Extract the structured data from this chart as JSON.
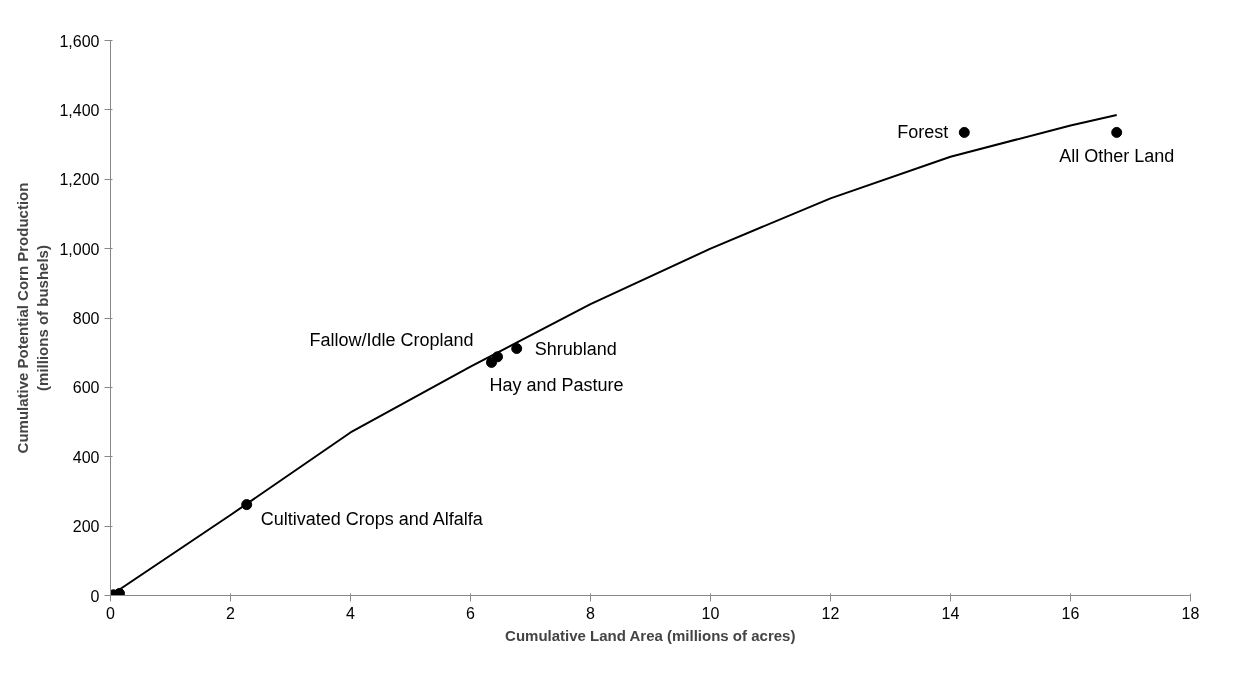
{
  "chart_data": {
    "type": "scatter",
    "xlabel": "Cumulative Land Area (millions of acres)",
    "ylabel": "Cumulative Potential Corn Production\n(millions of bushels)",
    "xlim": [
      0,
      18
    ],
    "xticks": [
      0,
      2,
      4,
      6,
      8,
      10,
      12,
      14,
      16,
      18
    ],
    "ylim": [
      0,
      1600
    ],
    "yticks": [
      {
        "value": 0,
        "label": "0"
      },
      {
        "value": 200,
        "label": "200"
      },
      {
        "value": 400,
        "label": "400"
      },
      {
        "value": 600,
        "label": "600"
      },
      {
        "value": 800,
        "label": "800"
      },
      {
        "value": 1000,
        "label": "1,000"
      },
      {
        "value": 1200,
        "label": "1,200"
      },
      {
        "value": 1400,
        "label": "1,400"
      },
      {
        "value": 1600,
        "label": "1,600"
      }
    ],
    "grid": false,
    "series": [
      {
        "marker": "circle",
        "color": "#000000",
        "x": [
          0.05,
          0.15,
          2.27,
          6.35,
          6.45,
          6.77,
          14.23,
          16.77
        ],
        "values": [
          2,
          6,
          262,
          672,
          688,
          712,
          1335,
          1335
        ]
      },
      {
        "type": "line",
        "marker": "none",
        "color": "#000000",
        "line_style": "solid",
        "x": [
          0,
          2,
          4,
          6,
          8,
          10,
          12,
          14,
          16,
          16.77
        ],
        "values": [
          0,
          232,
          470,
          660,
          840,
          1000,
          1145,
          1265,
          1355,
          1385
        ]
      }
    ],
    "annotations": [
      {
        "text": "Cultivated Crops and Alfalfa",
        "x": 2.27,
        "y": 262
      },
      {
        "text": "Fallow/Idle Cropland",
        "x": 6.35,
        "y": 672
      },
      {
        "text": "Hay and Pasture",
        "x": 6.45,
        "y": 688
      },
      {
        "text": "Shrubland",
        "x": 6.77,
        "y": 712
      },
      {
        "text": "Forest",
        "x": 14.23,
        "y": 1335
      },
      {
        "text": "All Other Land",
        "x": 16.77,
        "y": 1335
      }
    ]
  }
}
